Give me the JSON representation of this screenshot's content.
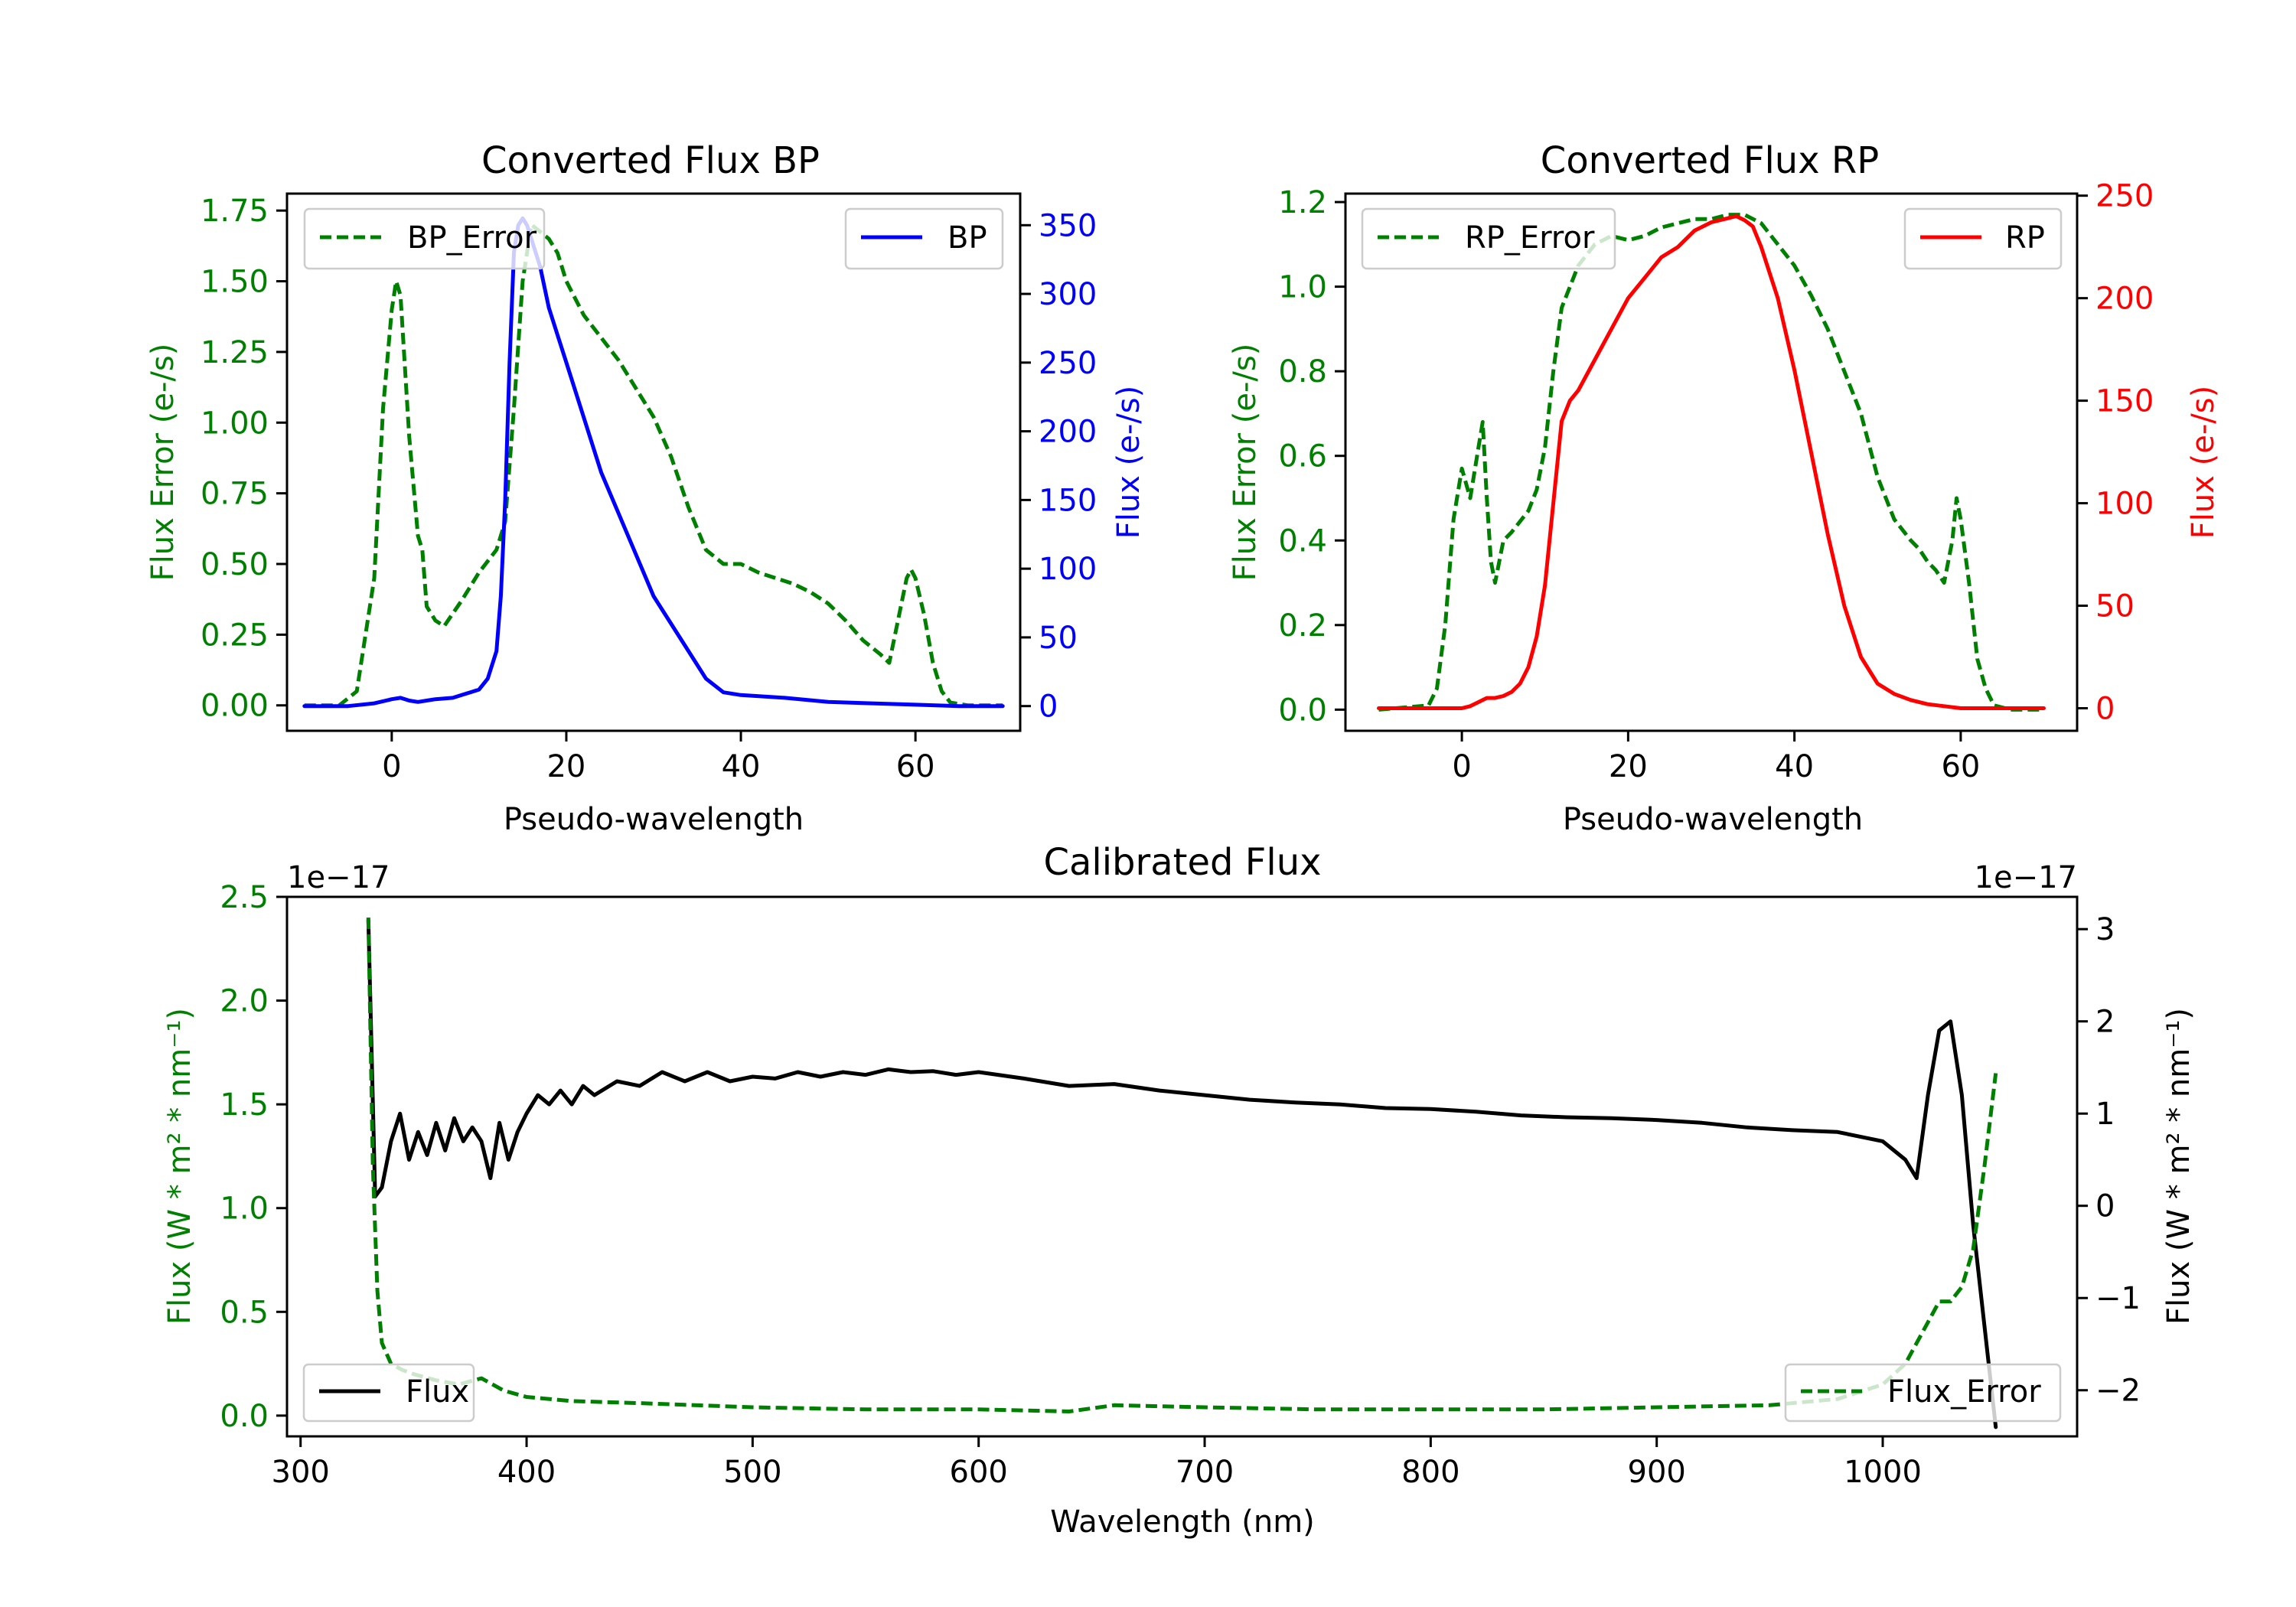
{
  "chart_data": [
    {
      "type": "line",
      "title": "Converted Flux BP",
      "xlabel": "Pseudo-wavelength",
      "ylabel_left": "Flux Error (e-/s)",
      "ylabel_right": "Flux (e-/s)",
      "xlim": [
        -12,
        72
      ],
      "ylim_left": [
        -0.09,
        1.81
      ],
      "ylim_right": [
        -18,
        373
      ],
      "xticks": [
        "0",
        "20",
        "40",
        "60"
      ],
      "yticks_left": [
        "0.00",
        "0.25",
        "0.50",
        "0.75",
        "1.00",
        "1.25",
        "1.50",
        "1.75"
      ],
      "yticks_right": [
        "0",
        "50",
        "100",
        "150",
        "200",
        "250",
        "300",
        "350"
      ],
      "colors": {
        "left_axis": "#008000",
        "right_axis": "#0000ff"
      },
      "legend_left": "BP_Error",
      "legend_right": "BP",
      "series": [
        {
          "name": "BP_Error",
          "axis": "left",
          "style": "dashed",
          "color": "#008000",
          "x": [
            -10,
            -6,
            -4,
            -2,
            -1,
            0,
            0.5,
            1,
            2,
            3,
            3.5,
            4,
            5,
            6,
            8,
            10,
            12,
            13,
            14,
            15,
            16,
            18,
            19,
            20,
            22,
            24,
            26,
            28,
            30,
            32,
            34,
            36,
            38,
            40,
            42,
            44,
            46,
            48,
            50,
            52,
            54,
            56,
            57,
            58,
            59,
            59.5,
            60,
            61,
            62,
            63,
            64,
            66,
            70
          ],
          "y": [
            0.0,
            0.0,
            0.05,
            0.45,
            1.05,
            1.4,
            1.5,
            1.45,
            0.95,
            0.6,
            0.55,
            0.35,
            0.3,
            0.28,
            0.37,
            0.47,
            0.55,
            0.65,
            1.05,
            1.5,
            1.7,
            1.65,
            1.6,
            1.5,
            1.38,
            1.3,
            1.22,
            1.12,
            1.02,
            0.88,
            0.7,
            0.55,
            0.5,
            0.5,
            0.47,
            0.45,
            0.43,
            0.4,
            0.36,
            0.3,
            0.23,
            0.18,
            0.15,
            0.3,
            0.45,
            0.48,
            0.45,
            0.32,
            0.15,
            0.05,
            0.01,
            0.0,
            0.0
          ]
        },
        {
          "name": "BP",
          "axis": "right",
          "style": "solid",
          "color": "#0000ff",
          "x": [
            -10,
            -5,
            -2,
            0,
            1,
            2,
            3,
            4,
            5,
            7,
            8,
            9,
            10,
            11,
            12,
            12.5,
            13,
            13.5,
            14,
            14.5,
            15,
            15.5,
            16,
            17,
            18,
            19,
            20,
            22,
            24,
            26,
            28,
            30,
            32,
            34,
            36,
            38,
            40,
            45,
            50,
            55,
            60,
            65,
            70
          ],
          "y": [
            0,
            0,
            2,
            5,
            6,
            4,
            3,
            4,
            5,
            6,
            8,
            10,
            12,
            20,
            40,
            80,
            150,
            250,
            330,
            350,
            355,
            350,
            340,
            320,
            290,
            270,
            250,
            210,
            170,
            140,
            110,
            80,
            60,
            40,
            20,
            10,
            8,
            6,
            3,
            2,
            1,
            0,
            0
          ]
        }
      ]
    },
    {
      "type": "line",
      "title": "Converted Flux RP",
      "xlabel": "Pseudo-wavelength",
      "ylabel_left": "Flux Error (e-/s)",
      "ylabel_right": "Flux (e-/s)",
      "xlim": [
        -14,
        74
      ],
      "ylim_left": [
        -0.05,
        1.22
      ],
      "ylim_right": [
        -11,
        251
      ],
      "xticks": [
        "0",
        "20",
        "40",
        "60"
      ],
      "yticks_left": [
        "0.0",
        "0.2",
        "0.4",
        "0.6",
        "0.8",
        "1.0",
        "1.2"
      ],
      "yticks_right": [
        "0",
        "50",
        "100",
        "150",
        "200",
        "250"
      ],
      "colors": {
        "left_axis": "#008000",
        "right_axis": "#ff0000"
      },
      "legend_left": "RP_Error",
      "legend_right": "RP",
      "series": [
        {
          "name": "RP_Error",
          "axis": "left",
          "style": "dashed",
          "color": "#008000",
          "x": [
            -10,
            -4,
            -3,
            -2,
            -1,
            0,
            1,
            2,
            2.5,
            3,
            3.5,
            4,
            5,
            6,
            8,
            9,
            10,
            11,
            12,
            14,
            16,
            18,
            20,
            22,
            24,
            26,
            28,
            30,
            32,
            34,
            36,
            38,
            40,
            42,
            44,
            46,
            48,
            50,
            52,
            54,
            55,
            56,
            57,
            58,
            59,
            59.5,
            60,
            61,
            62,
            63,
            64,
            66,
            70
          ],
          "y": [
            0.0,
            0.01,
            0.05,
            0.2,
            0.45,
            0.57,
            0.5,
            0.62,
            0.68,
            0.5,
            0.35,
            0.3,
            0.4,
            0.42,
            0.47,
            0.52,
            0.62,
            0.8,
            0.95,
            1.05,
            1.1,
            1.12,
            1.11,
            1.12,
            1.14,
            1.15,
            1.16,
            1.16,
            1.17,
            1.17,
            1.15,
            1.1,
            1.05,
            0.98,
            0.9,
            0.8,
            0.7,
            0.55,
            0.45,
            0.4,
            0.38,
            0.35,
            0.33,
            0.3,
            0.4,
            0.5,
            0.45,
            0.3,
            0.12,
            0.05,
            0.01,
            0.0,
            0.0
          ]
        },
        {
          "name": "RP",
          "axis": "right",
          "style": "solid",
          "color": "#ff0000",
          "x": [
            -10,
            -5,
            0,
            1,
            2,
            3,
            4,
            5,
            6,
            7,
            8,
            9,
            10,
            11,
            12,
            13,
            14,
            16,
            18,
            20,
            22,
            24,
            26,
            28,
            30,
            32,
            33,
            34,
            35,
            36,
            38,
            40,
            42,
            44,
            46,
            48,
            50,
            52,
            54,
            56,
            58,
            60,
            62,
            65,
            70
          ],
          "y": [
            0,
            0,
            0,
            1,
            3,
            5,
            5,
            6,
            8,
            12,
            20,
            35,
            60,
            100,
            140,
            150,
            155,
            170,
            185,
            200,
            210,
            220,
            225,
            233,
            237,
            239,
            240,
            238,
            235,
            225,
            200,
            165,
            125,
            85,
            50,
            25,
            12,
            7,
            4,
            2,
            1,
            0,
            0,
            0,
            0
          ]
        }
      ]
    },
    {
      "type": "line",
      "title": "Calibrated Flux",
      "xlabel": "Wavelength (nm)",
      "ylabel_left": "Flux (W * m² * nm⁻¹)",
      "ylabel_right": "Flux (W * m² * nm⁻¹)",
      "offset_left": "1e−17",
      "offset_right": "1e−17",
      "xlim": [
        294,
        1086
      ],
      "ylim_left": [
        -0.1,
        2.5
      ],
      "ylim_right": [
        -2.5,
        3.35
      ],
      "xticks": [
        "300",
        "400",
        "500",
        "600",
        "700",
        "800",
        "900",
        "1000"
      ],
      "yticks_left": [
        "0.0",
        "0.5",
        "1.0",
        "1.5",
        "2.0",
        "2.5"
      ],
      "yticks_right": [
        "−2",
        "−1",
        "0",
        "1",
        "2",
        "3"
      ],
      "colors": {
        "left_axis": "#008000",
        "right_axis": "#000000"
      },
      "legend_left": "Flux",
      "legend_right": "Flux_Error",
      "series": [
        {
          "name": "Flux",
          "axis": "right",
          "style": "solid",
          "color": "#000000",
          "x": [
            330,
            333,
            336,
            340,
            344,
            348,
            352,
            356,
            360,
            364,
            368,
            372,
            376,
            380,
            384,
            388,
            392,
            396,
            400,
            405,
            410,
            415,
            420,
            425,
            430,
            440,
            450,
            460,
            470,
            480,
            490,
            500,
            510,
            520,
            530,
            540,
            550,
            560,
            570,
            580,
            590,
            600,
            620,
            640,
            660,
            680,
            700,
            720,
            740,
            760,
            780,
            800,
            820,
            840,
            860,
            880,
            900,
            920,
            940,
            960,
            980,
            1000,
            1010,
            1015,
            1020,
            1025,
            1030,
            1035,
            1040,
            1045,
            1050
          ],
          "y": [
            3.1,
            0.1,
            0.2,
            0.7,
            1.0,
            0.5,
            0.8,
            0.55,
            0.9,
            0.6,
            0.95,
            0.7,
            0.85,
            0.7,
            0.3,
            0.9,
            0.5,
            0.8,
            1.0,
            1.2,
            1.1,
            1.25,
            1.1,
            1.3,
            1.2,
            1.35,
            1.3,
            1.45,
            1.35,
            1.45,
            1.35,
            1.4,
            1.38,
            1.45,
            1.4,
            1.45,
            1.42,
            1.48,
            1.45,
            1.46,
            1.42,
            1.45,
            1.38,
            1.3,
            1.32,
            1.25,
            1.2,
            1.15,
            1.12,
            1.1,
            1.06,
            1.05,
            1.02,
            0.98,
            0.96,
            0.95,
            0.93,
            0.9,
            0.85,
            0.82,
            0.8,
            0.7,
            0.5,
            0.3,
            1.2,
            1.9,
            2.0,
            1.2,
            -0.2,
            -1.3,
            -2.4
          ]
        },
        {
          "name": "Flux_Error",
          "axis": "left",
          "style": "dashed",
          "color": "#008000",
          "x": [
            330,
            332,
            334,
            336,
            340,
            345,
            350,
            360,
            370,
            380,
            390,
            400,
            420,
            450,
            500,
            550,
            600,
            640,
            660,
            700,
            750,
            800,
            850,
            900,
            950,
            980,
            1000,
            1010,
            1020,
            1025,
            1030,
            1035,
            1040,
            1045,
            1050
          ],
          "y": [
            2.4,
            1.2,
            0.6,
            0.35,
            0.25,
            0.22,
            0.2,
            0.17,
            0.15,
            0.18,
            0.12,
            0.09,
            0.07,
            0.06,
            0.04,
            0.03,
            0.03,
            0.02,
            0.05,
            0.04,
            0.03,
            0.03,
            0.03,
            0.04,
            0.05,
            0.08,
            0.15,
            0.25,
            0.45,
            0.55,
            0.55,
            0.62,
            0.8,
            1.2,
            1.65
          ]
        }
      ]
    }
  ]
}
